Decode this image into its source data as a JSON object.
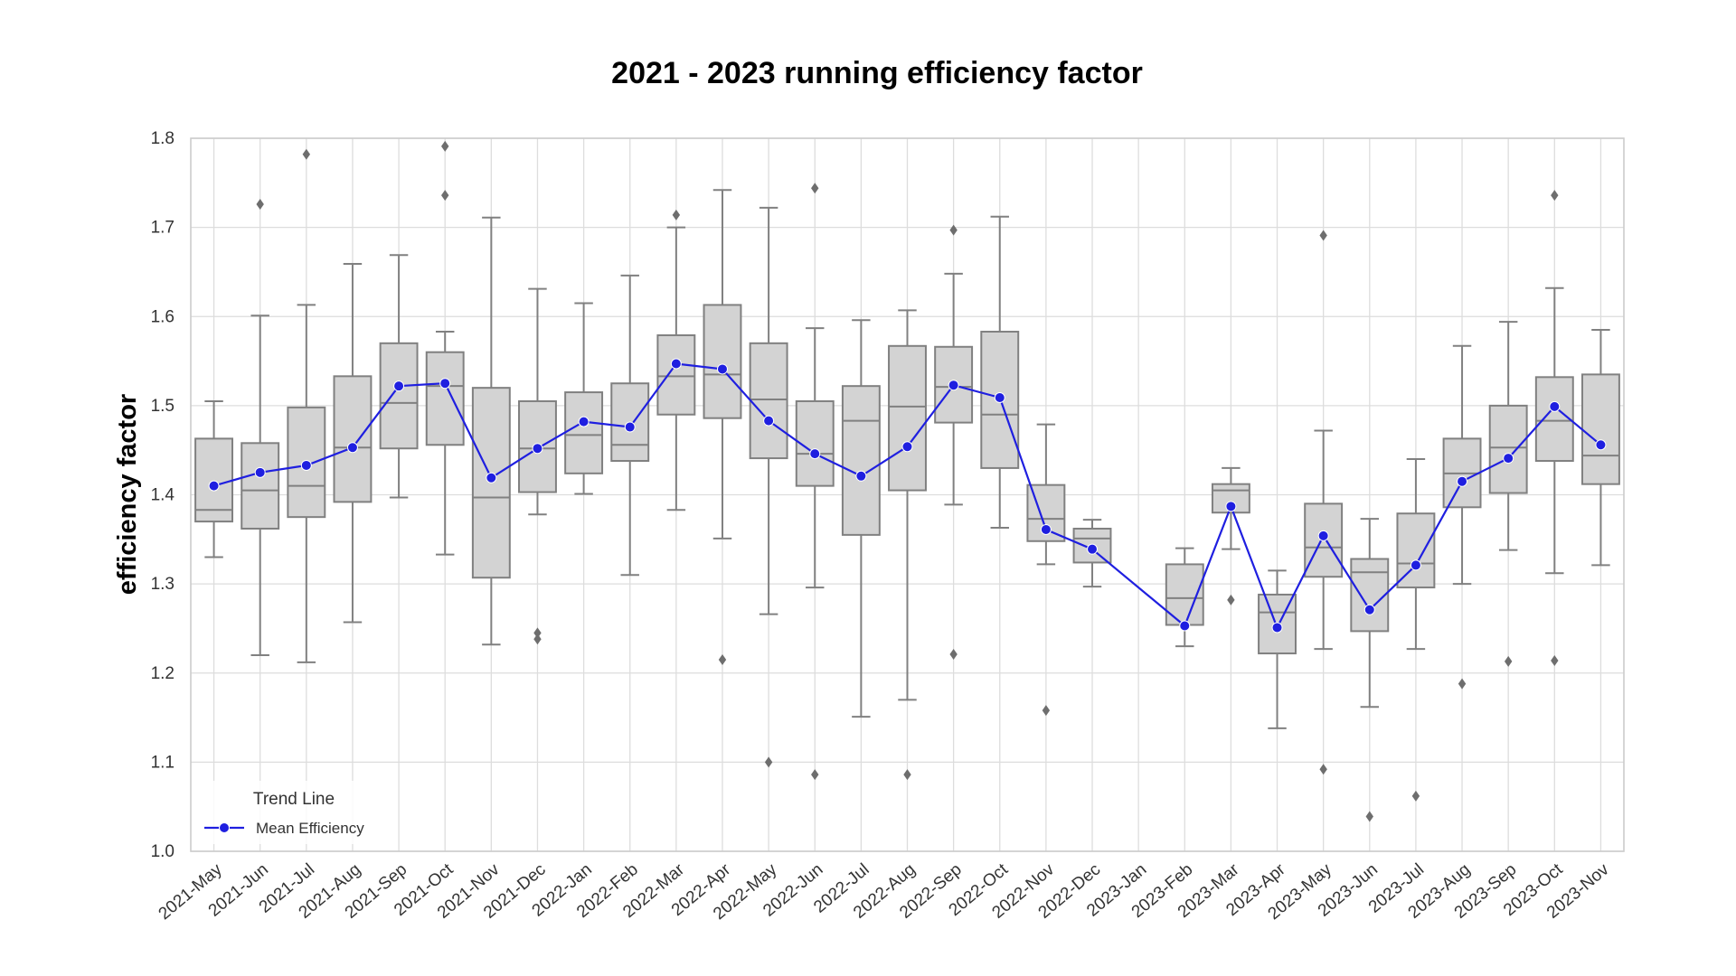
{
  "chart_data": {
    "type": "box",
    "title": "2021 - 2023 running efficiency factor",
    "ylabel": "efficiency factor",
    "xlabel": "",
    "ylim": [
      1.0,
      1.8
    ],
    "yticks": [
      "1.0",
      "1.1",
      "1.2",
      "1.3",
      "1.4",
      "1.5",
      "1.6",
      "1.7",
      "1.8"
    ],
    "grid": true,
    "categories": [
      "2021-May",
      "2021-Jun",
      "2021-Jul",
      "2021-Aug",
      "2021-Sep",
      "2021-Oct",
      "2021-Nov",
      "2021-Dec",
      "2022-Jan",
      "2022-Feb",
      "2022-Mar",
      "2022-Apr",
      "2022-May",
      "2022-Jun",
      "2022-Jul",
      "2022-Aug",
      "2022-Sep",
      "2022-Oct",
      "2022-Nov",
      "2022-Dec",
      "2023-Jan",
      "2023-Feb",
      "2023-Mar",
      "2023-Apr",
      "2023-May",
      "2023-Jun",
      "2023-Jul",
      "2023-Aug",
      "2023-Sep",
      "2023-Oct",
      "2023-Nov"
    ],
    "boxes": [
      {
        "whislo": 1.33,
        "q1": 1.37,
        "med": 1.383,
        "q3": 1.463,
        "whishi": 1.505,
        "fliers": []
      },
      {
        "whislo": 1.22,
        "q1": 1.362,
        "med": 1.405,
        "q3": 1.458,
        "whishi": 1.601,
        "fliers": [
          1.726
        ]
      },
      {
        "whislo": 1.212,
        "q1": 1.375,
        "med": 1.41,
        "q3": 1.498,
        "whishi": 1.613,
        "fliers": [
          1.782
        ]
      },
      {
        "whislo": 1.257,
        "q1": 1.392,
        "med": 1.453,
        "q3": 1.533,
        "whishi": 1.659,
        "fliers": []
      },
      {
        "whislo": 1.397,
        "q1": 1.452,
        "med": 1.503,
        "q3": 1.57,
        "whishi": 1.669,
        "fliers": []
      },
      {
        "whislo": 1.333,
        "q1": 1.456,
        "med": 1.522,
        "q3": 1.56,
        "whishi": 1.583,
        "fliers": [
          1.736,
          1.791
        ]
      },
      {
        "whislo": 1.232,
        "q1": 1.307,
        "med": 1.397,
        "q3": 1.52,
        "whishi": 1.711,
        "fliers": []
      },
      {
        "whislo": 1.378,
        "q1": 1.403,
        "med": 1.452,
        "q3": 1.505,
        "whishi": 1.631,
        "fliers": [
          1.238,
          1.245
        ]
      },
      {
        "whislo": 1.401,
        "q1": 1.424,
        "med": 1.467,
        "q3": 1.515,
        "whishi": 1.615,
        "fliers": []
      },
      {
        "whislo": 1.31,
        "q1": 1.438,
        "med": 1.456,
        "q3": 1.525,
        "whishi": 1.646,
        "fliers": []
      },
      {
        "whislo": 1.383,
        "q1": 1.49,
        "med": 1.533,
        "q3": 1.579,
        "whishi": 1.7,
        "fliers": [
          1.714
        ]
      },
      {
        "whislo": 1.351,
        "q1": 1.486,
        "med": 1.535,
        "q3": 1.613,
        "whishi": 1.742,
        "fliers": [
          1.215
        ]
      },
      {
        "whislo": 1.266,
        "q1": 1.441,
        "med": 1.507,
        "q3": 1.57,
        "whishi": 1.722,
        "fliers": [
          1.1
        ]
      },
      {
        "whislo": 1.296,
        "q1": 1.41,
        "med": 1.446,
        "q3": 1.505,
        "whishi": 1.587,
        "fliers": [
          1.086,
          1.744
        ]
      },
      {
        "whislo": 1.151,
        "q1": 1.355,
        "med": 1.483,
        "q3": 1.522,
        "whishi": 1.596,
        "fliers": []
      },
      {
        "whislo": 1.17,
        "q1": 1.405,
        "med": 1.499,
        "q3": 1.567,
        "whishi": 1.607,
        "fliers": [
          1.086
        ]
      },
      {
        "whislo": 1.389,
        "q1": 1.481,
        "med": 1.521,
        "q3": 1.566,
        "whishi": 1.648,
        "fliers": [
          1.221,
          1.697
        ]
      },
      {
        "whislo": 1.363,
        "q1": 1.43,
        "med": 1.49,
        "q3": 1.583,
        "whishi": 1.712,
        "fliers": []
      },
      {
        "whislo": 1.322,
        "q1": 1.348,
        "med": 1.373,
        "q3": 1.411,
        "whishi": 1.479,
        "fliers": [
          1.158
        ]
      },
      {
        "whislo": 1.297,
        "q1": 1.324,
        "med": 1.351,
        "q3": 1.362,
        "whishi": 1.372,
        "fliers": []
      },
      null,
      {
        "whislo": 1.23,
        "q1": 1.254,
        "med": 1.284,
        "q3": 1.322,
        "whishi": 1.34,
        "fliers": []
      },
      {
        "whislo": 1.339,
        "q1": 1.38,
        "med": 1.405,
        "q3": 1.412,
        "whishi": 1.43,
        "fliers": [
          1.282
        ]
      },
      {
        "whislo": 1.138,
        "q1": 1.222,
        "med": 1.268,
        "q3": 1.288,
        "whishi": 1.315,
        "fliers": []
      },
      {
        "whislo": 1.227,
        "q1": 1.308,
        "med": 1.341,
        "q3": 1.39,
        "whishi": 1.472,
        "fliers": [
          1.092,
          1.691
        ]
      },
      {
        "whislo": 1.162,
        "q1": 1.247,
        "med": 1.313,
        "q3": 1.328,
        "whishi": 1.373,
        "fliers": [
          1.039
        ]
      },
      {
        "whislo": 1.227,
        "q1": 1.296,
        "med": 1.323,
        "q3": 1.379,
        "whishi": 1.44,
        "fliers": [
          1.062
        ]
      },
      {
        "whislo": 1.3,
        "q1": 1.386,
        "med": 1.424,
        "q3": 1.463,
        "whishi": 1.567,
        "fliers": [
          1.188
        ]
      },
      {
        "whislo": 1.338,
        "q1": 1.402,
        "med": 1.453,
        "q3": 1.5,
        "whishi": 1.594,
        "fliers": [
          1.213
        ]
      },
      {
        "whislo": 1.312,
        "q1": 1.438,
        "med": 1.483,
        "q3": 1.532,
        "whishi": 1.632,
        "fliers": [
          1.214,
          1.736
        ]
      },
      {
        "whislo": 1.321,
        "q1": 1.412,
        "med": 1.444,
        "q3": 1.535,
        "whishi": 1.585,
        "fliers": []
      }
    ],
    "series": [
      {
        "name": "Mean Efficiency",
        "type": "line",
        "color": "#1f1fe0",
        "values": [
          1.41,
          1.425,
          1.433,
          1.453,
          1.522,
          1.525,
          1.419,
          1.452,
          1.482,
          1.476,
          1.547,
          1.541,
          1.483,
          1.446,
          1.421,
          1.454,
          1.523,
          1.509,
          1.361,
          1.339,
          null,
          1.253,
          1.387,
          1.251,
          1.354,
          1.271,
          1.321,
          1.415,
          1.441,
          1.499,
          1.456
        ]
      }
    ],
    "legend": {
      "title": "Trend Line",
      "placement": "lower-left",
      "entries": [
        "Mean Efficiency"
      ]
    },
    "colors": {
      "box_fill": "#d3d3d3",
      "box_edge": "#808080",
      "grid": "#dddddd",
      "axes_edge": "#cccccc"
    }
  }
}
